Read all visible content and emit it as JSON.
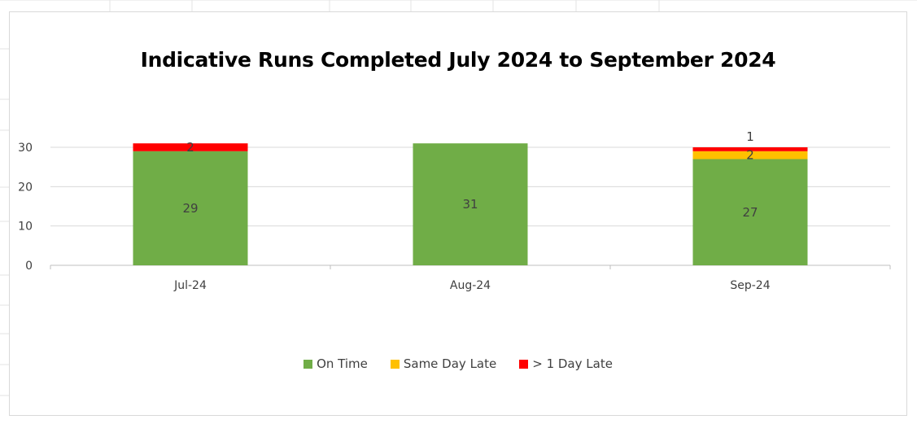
{
  "chart_data": {
    "type": "bar",
    "stacked": true,
    "title": "Indicative Runs Completed July 2024 to September 2024",
    "categories": [
      "Jul-24",
      "Aug-24",
      "Sep-24"
    ],
    "series": [
      {
        "name": "On Time",
        "color": "#70ad47",
        "values": [
          29,
          31,
          27
        ]
      },
      {
        "name": "Same Day Late",
        "color": "#ffc000",
        "values": [
          0,
          0,
          2
        ]
      },
      {
        "name": "> 1 Day Late",
        "color": "#ff0000",
        "values": [
          2,
          0,
          1
        ]
      }
    ],
    "ylim": [
      0,
      30
    ],
    "yticks": [
      "0",
      "10",
      "20",
      "30"
    ],
    "grid": true,
    "legend_position": "bottom"
  }
}
